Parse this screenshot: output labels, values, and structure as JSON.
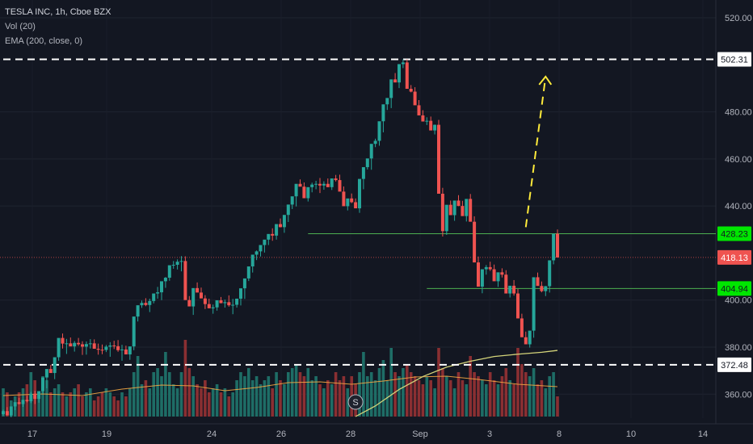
{
  "legend": {
    "symbol": "TESLA INC, 1h, Cboe BZX",
    "volume": "Vol (20)",
    "ema": "EMA (200, close, 0)"
  },
  "colors": {
    "background": "#131722",
    "up": "#26a69a",
    "down": "#ef5350",
    "volume_up": "#1e6d66",
    "volume_down": "#8a2f32",
    "support": "#4caf50",
    "ema": "#f5a742",
    "volume_ma": "#d4d47a",
    "dashed_level": "#ffffff",
    "projection": "#ffeb3b",
    "axis_text": "#b2b5be"
  },
  "chart_data": {
    "type": "candlestick",
    "y_axis": {
      "range": [
        350,
        526
      ],
      "ticks": [
        "520.00",
        "480.00",
        "460.00",
        "440.00",
        "400.00",
        "380.00",
        "360.00"
      ]
    },
    "x_axis": {
      "ticks": [
        "17",
        "19",
        "24",
        "26",
        "28",
        "Sep",
        "3",
        "8",
        "10",
        "14"
      ]
    },
    "price_labels": [
      {
        "label": "502.31",
        "value": 502.31,
        "style": "white"
      },
      {
        "label": "428.23",
        "value": 428.23,
        "style": "green"
      },
      {
        "label": "418.13",
        "value": 418.13,
        "style": "red"
      },
      {
        "label": "404.94",
        "value": 404.94,
        "style": "green"
      },
      {
        "label": "372.48",
        "value": 372.48,
        "style": "white"
      }
    ],
    "horizontal_levels": [
      {
        "value": 502.31,
        "style": "dashed",
        "from_index": 0
      },
      {
        "value": 372.48,
        "style": "dashed",
        "from_index": 0
      },
      {
        "value": 428.23,
        "style": "solid",
        "from_index": 77
      },
      {
        "value": 404.94,
        "style": "solid",
        "from_index": 107
      }
    ],
    "last_price": 418.13,
    "marker": {
      "label": "S",
      "index": 89
    },
    "projection": {
      "from": [
        132,
        431
      ],
      "to": [
        137,
        495
      ]
    },
    "candles": [
      [
        351.5,
        353.4,
        350.9,
        352.8
      ],
      [
        352.8,
        354.5,
        352.0,
        351.0
      ],
      [
        351.0,
        352.9,
        350.2,
        354.8
      ],
      [
        354.8,
        356.4,
        353.2,
        356.6
      ],
      [
        356.6,
        358.4,
        355.7,
        355.8
      ],
      [
        355.8,
        357.4,
        354.6,
        357.6
      ],
      [
        357.6,
        359.3,
        356.5,
        357.0
      ],
      [
        357.0,
        361.0,
        356.2,
        360.2
      ],
      [
        360.2,
        361.4,
        355.8,
        358.0
      ],
      [
        358.0,
        359.7,
        356.4,
        361.3
      ],
      [
        361.3,
        363.3,
        360.1,
        367.1
      ],
      [
        367.1,
        368.6,
        362.5,
        370.7
      ],
      [
        370.7,
        372.5,
        369.3,
        369.0
      ],
      [
        369.0,
        372.8,
        366.4,
        375.7
      ],
      [
        375.7,
        377.9,
        374.2,
        383.9
      ],
      [
        383.9,
        385.8,
        379.4,
        381.5
      ],
      [
        381.5,
        383.5,
        377.1,
        381.6
      ],
      [
        381.6,
        384.1,
        380.6,
        380.3
      ],
      [
        380.3,
        382.6,
        378.1,
        381.8
      ],
      [
        381.8,
        383.9,
        380.5,
        381.2
      ],
      [
        381.2,
        382.5,
        376.7,
        380.2
      ],
      [
        380.2,
        382.4,
        376.8,
        381.3
      ],
      [
        381.3,
        383.4,
        379.4,
        381.6
      ],
      [
        381.6,
        383.3,
        380.9,
        379.3
      ],
      [
        379.3,
        381.5,
        376.8,
        378.9
      ],
      [
        378.9,
        381.1,
        377.0,
        378.8
      ],
      [
        378.8,
        380.9,
        377.9,
        380.2
      ],
      [
        380.2,
        382.1,
        375.9,
        380.7
      ],
      [
        380.7,
        382.7,
        379.2,
        380.4
      ],
      [
        380.4,
        383.0,
        378.0,
        378.7
      ],
      [
        378.7,
        381.0,
        374.2,
        379.0
      ],
      [
        379.0,
        380.6,
        377.3,
        376.9
      ],
      [
        376.9,
        379.5,
        374.6,
        380.3
      ],
      [
        380.3,
        381.9,
        378.7,
        393.0
      ],
      [
        393.0,
        394.5,
        390.9,
        397.8
      ],
      [
        397.8,
        399.8,
        396.7,
        398.8
      ],
      [
        398.8,
        400.8,
        397.4,
        397.9
      ],
      [
        397.9,
        400.6,
        394.9,
        399.6
      ],
      [
        399.6,
        402.1,
        398.6,
        402.8
      ],
      [
        402.8,
        405.6,
        400.6,
        403.3
      ],
      [
        403.3,
        404.5,
        400.0,
        408.0
      ],
      [
        408.0,
        409.8,
        405.2,
        409.5
      ],
      [
        409.5,
        411.8,
        408.2,
        414.8
      ],
      [
        414.8,
        416.6,
        413.3,
        415.0
      ],
      [
        415.0,
        417.3,
        413.0,
        416.3
      ],
      [
        416.3,
        418.7,
        412.2,
        416.6
      ],
      [
        416.6,
        418.6,
        413.7,
        400.0
      ],
      [
        400.0,
        401.7,
        398.4,
        397.3
      ],
      [
        397.3,
        400.8,
        393.7,
        405.1
      ],
      [
        405.1,
        407.5,
        403.9,
        403.2
      ],
      [
        403.2,
        405.3,
        400.8,
        400.7
      ],
      [
        400.7,
        402.1,
        396.2,
        398.3
      ],
      [
        398.3,
        400.6,
        397.2,
        396.5
      ],
      [
        396.5,
        398.1,
        394.2,
        396.9
      ],
      [
        396.9,
        398.5,
        395.5,
        399.9
      ],
      [
        399.9,
        401.3,
        398.6,
        398.7
      ],
      [
        398.7,
        400.2,
        396.8,
        399.1
      ],
      [
        399.1,
        402.0,
        397.2,
        397.8
      ],
      [
        397.8,
        400.5,
        394.0,
        398.0
      ],
      [
        398.0,
        400.6,
        396.8,
        400.6
      ],
      [
        400.6,
        402.4,
        397.7,
        405.0
      ],
      [
        405.0,
        407.0,
        400.5,
        409.2
      ],
      [
        409.2,
        411.6,
        408.1,
        414.3
      ],
      [
        414.3,
        416.5,
        411.7,
        419.3
      ],
      [
        419.3,
        421.1,
        417.0,
        420.7
      ],
      [
        420.7,
        423.1,
        418.5,
        423.4
      ],
      [
        423.4,
        425.5,
        420.2,
        425.7
      ],
      [
        425.7,
        427.5,
        423.4,
        428.1
      ],
      [
        428.1,
        430.5,
        425.2,
        427.4
      ],
      [
        427.4,
        429.6,
        425.7,
        432.3
      ],
      [
        432.3,
        434.7,
        430.9,
        431.0
      ],
      [
        431.0,
        432.7,
        428.6,
        436.2
      ],
      [
        436.2,
        438.8,
        433.2,
        440.6
      ],
      [
        440.6,
        442.5,
        438.7,
        444.1
      ],
      [
        444.1,
        446.3,
        439.8,
        449.4
      ],
      [
        449.4,
        451.3,
        448.3,
        448.2
      ],
      [
        448.2,
        450.0,
        446.6,
        443.3
      ],
      [
        443.3,
        445.7,
        441.9,
        448.0
      ],
      [
        448.0,
        449.9,
        445.8,
        449.1
      ],
      [
        449.1,
        450.7,
        447.1,
        449.4
      ],
      [
        449.4,
        451.9,
        445.5,
        448.7
      ],
      [
        448.7,
        450.5,
        446.9,
        449.4
      ],
      [
        449.4,
        451.7,
        448.0,
        448.0
      ],
      [
        448.0,
        450.4,
        446.8,
        451.7
      ],
      [
        451.7,
        453.2,
        450.4,
        451.0
      ],
      [
        451.0,
        453.3,
        448.2,
        446.1
      ],
      [
        446.1,
        448.3,
        443.8,
        439.9
      ],
      [
        439.9,
        442.6,
        438.1,
        443.2
      ],
      [
        443.2,
        445.3,
        441.2,
        441.6
      ],
      [
        441.6,
        443.2,
        439.4,
        439.0
      ],
      [
        439.0,
        441.1,
        437.1,
        451.5
      ],
      [
        451.5,
        453.0,
        447.1,
        456.5
      ],
      [
        456.5,
        458.3,
        455.5,
        460.2
      ],
      [
        460.2,
        462.0,
        455.4,
        466.4
      ],
      [
        466.4,
        468.6,
        465.0,
        467.7
      ],
      [
        467.7,
        469.6,
        465.6,
        476.0
      ],
      [
        476.0,
        477.6,
        471.3,
        483.2
      ],
      [
        483.2,
        485.5,
        480.8,
        485.9
      ],
      [
        485.9,
        488.0,
        481.6,
        493.8
      ],
      [
        493.8,
        496.5,
        492.8,
        492.5
      ],
      [
        492.5,
        494.1,
        490.1,
        500.3
      ],
      [
        500.3,
        502.3,
        498.6,
        501.0
      ],
      [
        501.0,
        502.3,
        493.7,
        489.8
      ],
      [
        489.8,
        491.4,
        488.3,
        488.6
      ],
      [
        488.6,
        490.5,
        486.9,
        482.8
      ],
      [
        482.8,
        485.0,
        481.2,
        478.5
      ],
      [
        478.5,
        480.7,
        476.9,
        475.9
      ],
      [
        475.9,
        477.7,
        474.4,
        476.2
      ],
      [
        476.2,
        478.0,
        474.6,
        472.1
      ],
      [
        472.1,
        474.6,
        470.4,
        474.5
      ],
      [
        474.5,
        476.6,
        470.0,
        445.2
      ],
      [
        445.2,
        447.7,
        427.0,
        429.3
      ],
      [
        429.3,
        431.1,
        427.7,
        440.5
      ],
      [
        440.5,
        442.3,
        436.9,
        436.1
      ],
      [
        436.1,
        438.4,
        433.7,
        442.3
      ],
      [
        442.3,
        444.6,
        439.9,
        440.0
      ],
      [
        440.0,
        442.2,
        437.1,
        435.7
      ],
      [
        435.7,
        438.2,
        433.4,
        443.0
      ],
      [
        443.0,
        445.1,
        440.5,
        433.3
      ],
      [
        433.3,
        435.6,
        428.3,
        416.0
      ],
      [
        416.0,
        418.5,
        413.9,
        405.7
      ],
      [
        405.7,
        407.7,
        402.9,
        413.1
      ],
      [
        413.1,
        414.9,
        410.8,
        414.0
      ],
      [
        414.0,
        416.3,
        412.4,
        413.1
      ],
      [
        413.1,
        415.1,
        410.8,
        408.0
      ],
      [
        408.0,
        411.4,
        405.6,
        411.8
      ],
      [
        411.8,
        413.5,
        409.6,
        410.8
      ],
      [
        410.8,
        412.7,
        409.0,
        402.8
      ],
      [
        402.8,
        404.6,
        401.1,
        406.1
      ],
      [
        406.1,
        408.5,
        401.9,
        402.8
      ],
      [
        402.8,
        404.7,
        400.5,
        392.2
      ],
      [
        392.2,
        394.2,
        389.9,
        384.2
      ],
      [
        384.2,
        386.6,
        381.9,
        381.2
      ],
      [
        381.2,
        384.3,
        379.8,
        387.0
      ],
      [
        387.0,
        388.6,
        384.0,
        409.7
      ],
      [
        409.7,
        411.7,
        407.6,
        406.0
      ],
      [
        406.0,
        407.9,
        403.3,
        403.8
      ],
      [
        403.8,
        406.0,
        401.7,
        405.9
      ],
      [
        405.9,
        408.1,
        403.2,
        416.9
      ],
      [
        416.9,
        419.0,
        415.2,
        428.2
      ],
      [
        428.2,
        430.0,
        426.6,
        418.1
      ]
    ],
    "volumes": [
      0.35,
      0.3,
      0.2,
      0.25,
      0.3,
      0.35,
      0.4,
      0.55,
      0.45,
      0.3,
      0.5,
      0.45,
      0.3,
      0.35,
      0.4,
      0.3,
      0.25,
      0.3,
      0.35,
      0.4,
      0.25,
      0.3,
      0.35,
      0.2,
      0.25,
      0.3,
      0.35,
      0.3,
      0.25,
      0.2,
      0.3,
      0.25,
      0.35,
      0.55,
      0.75,
      0.4,
      0.45,
      0.35,
      0.55,
      0.6,
      0.5,
      0.8,
      0.55,
      0.4,
      0.35,
      0.55,
      0.95,
      0.6,
      0.5,
      0.4,
      0.35,
      0.45,
      0.3,
      0.35,
      0.4,
      0.3,
      0.35,
      0.25,
      0.3,
      0.45,
      0.55,
      0.5,
      0.6,
      0.45,
      0.5,
      0.4,
      0.45,
      0.5,
      0.35,
      0.55,
      0.45,
      0.4,
      0.55,
      0.6,
      0.65,
      0.55,
      0.5,
      0.6,
      0.45,
      0.5,
      0.4,
      0.35,
      0.45,
      0.4,
      0.55,
      0.45,
      0.5,
      0.35,
      0.5,
      0.4,
      0.55,
      0.8,
      0.5,
      0.55,
      0.45,
      0.6,
      0.7,
      0.45,
      0.85,
      0.55,
      0.5,
      0.6,
      0.65,
      0.55,
      0.5,
      0.45,
      0.4,
      0.5,
      0.45,
      0.35,
      0.85,
      0.6,
      0.5,
      0.45,
      0.35,
      0.55,
      0.45,
      0.4,
      0.75,
      0.55,
      0.5,
      0.45,
      0.4,
      0.55,
      0.45,
      0.4,
      0.5,
      0.6,
      0.45,
      0.4,
      0.85,
      0.65,
      0.55,
      0.5,
      0.6,
      0.4,
      0.45,
      0.35,
      0.5,
      0.55,
      0.25
    ],
    "volume_ma": [
      [
        0,
        0.26
      ],
      [
        10,
        0.28
      ],
      [
        20,
        0.26
      ],
      [
        30,
        0.34
      ],
      [
        40,
        0.39
      ],
      [
        48,
        0.38
      ],
      [
        56,
        0.32
      ],
      [
        64,
        0.36
      ],
      [
        72,
        0.42
      ],
      [
        80,
        0.43
      ],
      [
        88,
        0.4
      ],
      [
        96,
        0.44
      ],
      [
        104,
        0.49
      ],
      [
        112,
        0.5
      ],
      [
        120,
        0.46
      ],
      [
        130,
        0.4
      ],
      [
        140,
        0.37
      ]
    ],
    "ema": [
      [
        89,
        350.5
      ],
      [
        94,
        355.0
      ],
      [
        100,
        362.0
      ],
      [
        106,
        367.5
      ],
      [
        112,
        371.5
      ],
      [
        118,
        374.0
      ],
      [
        124,
        376.0
      ],
      [
        130,
        377.0
      ],
      [
        136,
        377.8
      ],
      [
        140,
        378.6
      ]
    ]
  }
}
